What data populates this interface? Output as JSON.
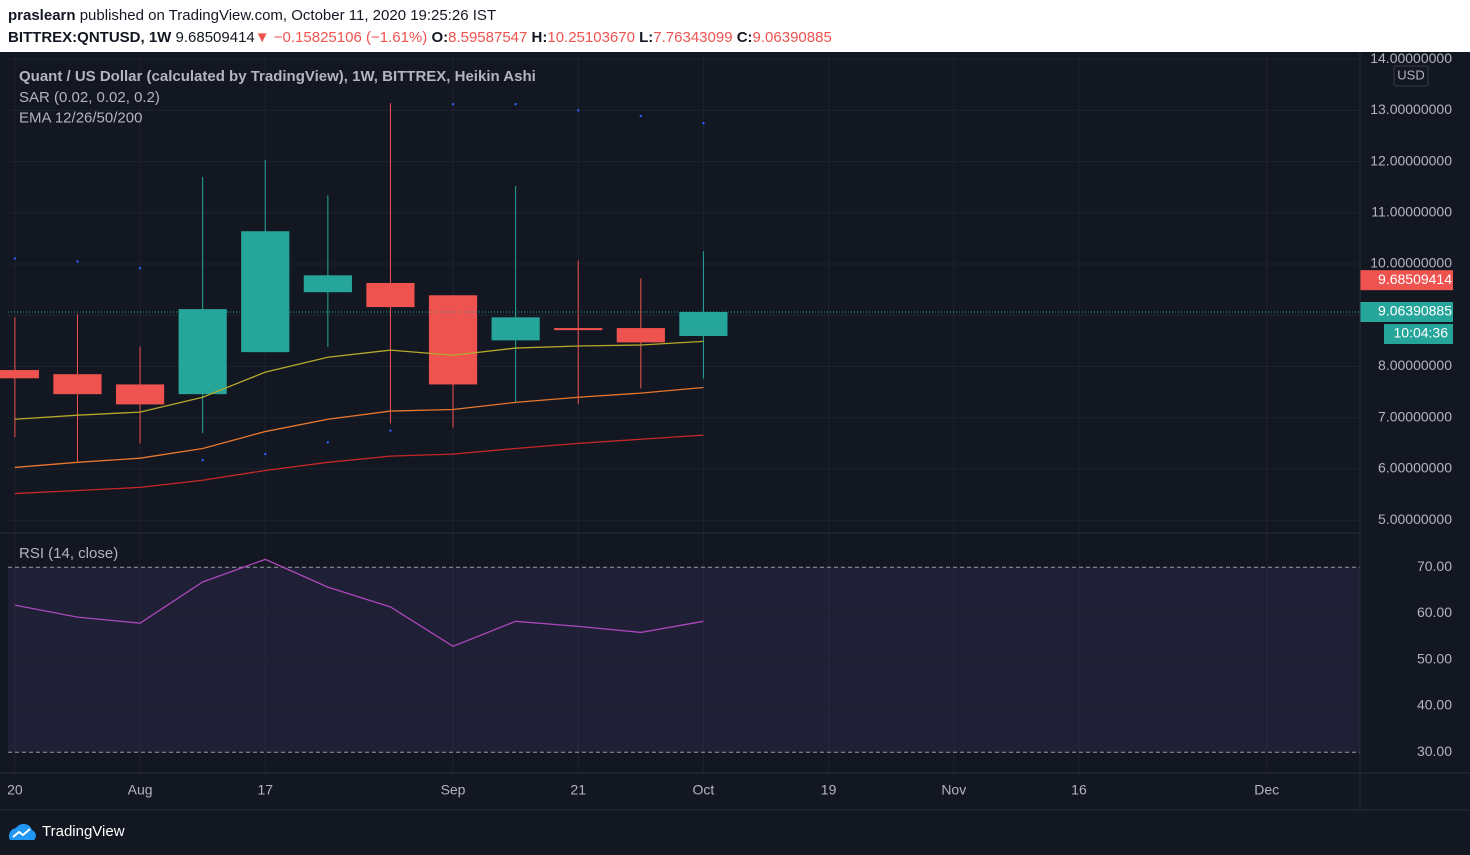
{
  "header": {
    "user": "praslearn",
    "published": "published on TradingView.com, October 11, 2020 19:25:26 IST",
    "symbol": "BITTREX:QNTUSD, 1W",
    "last": "9.68509414",
    "arrow": "▼",
    "change": "−0.15825106 (−1.61%)",
    "o_label": "O:",
    "o": "8.59587547",
    "h_label": "H:",
    "h": "10.25103670",
    "l_label": "L:",
    "l": "7.76343099",
    "c_label": "C:",
    "c": "9.06390885"
  },
  "chart_data": [
    {
      "type": "candlestick",
      "title": "Quant / US Dollar (calculated by TradingView), 1W, BITTREX, Heikin Ashi",
      "indicators": [
        "SAR (0.02, 0.02, 0.2)",
        "EMA 12/26/50/200"
      ],
      "x": [
        0,
        1,
        2,
        3,
        4,
        5,
        6,
        7,
        8,
        9,
        10,
        11
      ],
      "open": [
        7.93,
        7.85,
        7.65,
        7.46,
        8.28,
        9.45,
        9.63,
        9.39,
        8.51,
        8.75,
        8.75,
        8.59587547
      ],
      "high": [
        8.96,
        9.02,
        8.39,
        11.7,
        12.03,
        11.34,
        13.14,
        9.39,
        11.52,
        10.07,
        9.72,
        10.2510367
      ],
      "low": [
        6.62,
        6.13,
        6.5,
        6.7,
        8.28,
        8.38,
        6.89,
        6.81,
        7.3,
        7.26,
        7.57,
        7.76343099
      ],
      "close": [
        7.77,
        7.46,
        7.26,
        9.12,
        10.64,
        9.78,
        9.16,
        7.65,
        8.96,
        8.71,
        8.47,
        9.06390885
      ],
      "up_color": "#26a69a",
      "down_color": "#ef5350",
      "series": [
        {
          "style": "dots",
          "color": "#2962ff",
          "values": [
            10.11,
            10.05,
            9.92,
            6.17,
            6.29,
            6.52,
            6.75,
            13.12,
            13.12,
            13.0,
            12.89,
            12.75
          ]
        },
        {
          "style": "line",
          "color": "#b5a92b",
          "values": [
            6.97,
            7.05,
            7.11,
            7.4,
            7.89,
            8.18,
            8.32,
            8.22,
            8.36,
            8.4,
            8.42,
            8.49
          ]
        },
        {
          "style": "line",
          "color": "#e8772e",
          "values": [
            6.03,
            6.13,
            6.21,
            6.4,
            6.73,
            6.97,
            7.13,
            7.16,
            7.3,
            7.4,
            7.48,
            7.59
          ]
        },
        {
          "style": "line",
          "color": "#c62828",
          "values": [
            5.52,
            5.58,
            5.64,
            5.78,
            5.97,
            6.13,
            6.25,
            6.29,
            6.4,
            6.5,
            6.58,
            6.66
          ]
        }
      ],
      "xlim": [
        -0.11,
        21.49
      ],
      "ylim": [
        4.75,
        14.08
      ],
      "yticks": [
        {
          "value": 5,
          "label": "5.00000000"
        },
        {
          "value": 6,
          "label": "6.00000000"
        },
        {
          "value": 7,
          "label": "7.00000000"
        },
        {
          "value": 8,
          "label": "8.00000000"
        },
        {
          "value": 9,
          "label": "9.00000000"
        },
        {
          "value": 10,
          "label": "10.00000000"
        },
        {
          "value": 11,
          "label": "11.00000000"
        },
        {
          "value": 12,
          "label": "12.00000000"
        },
        {
          "value": 13,
          "label": "13.00000000"
        },
        {
          "value": 14,
          "label": "14.00000000"
        }
      ],
      "grid": true,
      "currency": "USD",
      "last_price": 9.68509414,
      "last_color": "#ef5350",
      "countdown": "10:04:36"
    },
    {
      "type": "line",
      "title": "RSI (14, close)",
      "x": [
        0,
        1,
        2,
        3,
        4,
        5,
        6,
        7,
        8,
        9,
        10,
        11
      ],
      "series": [
        {
          "color": "#ab47bc",
          "values": [
            61.8,
            59.2,
            57.9,
            66.8,
            71.7,
            65.7,
            61.4,
            52.9,
            58.3,
            57.2,
            55.9,
            58.3
          ]
        }
      ],
      "xlim": [
        -0.11,
        21.49
      ],
      "ylim": [
        25.5,
        77.4
      ],
      "yticks": [
        {
          "value": 30,
          "label": "30.00"
        },
        {
          "value": 40,
          "label": "40.00"
        },
        {
          "value": 50,
          "label": "50.00"
        },
        {
          "value": 60,
          "label": "60.00"
        },
        {
          "value": 70,
          "label": "70.00"
        }
      ],
      "band": [
        30,
        70
      ],
      "band_color": "#7e57c2",
      "grid": true,
      "xticks": [
        {
          "value": 0,
          "label": "20"
        },
        {
          "value": 2,
          "label": "Aug"
        },
        {
          "value": 4,
          "label": "17"
        },
        {
          "value": 7,
          "label": "Sep"
        },
        {
          "value": 9,
          "label": "21"
        },
        {
          "value": 11,
          "label": "Oct"
        },
        {
          "value": 13,
          "label": "19"
        },
        {
          "value": 15,
          "label": "Nov"
        },
        {
          "value": 17,
          "label": "16"
        },
        {
          "value": 20,
          "label": "Dec"
        }
      ]
    }
  ],
  "footer": {
    "brand": "TradingView"
  }
}
